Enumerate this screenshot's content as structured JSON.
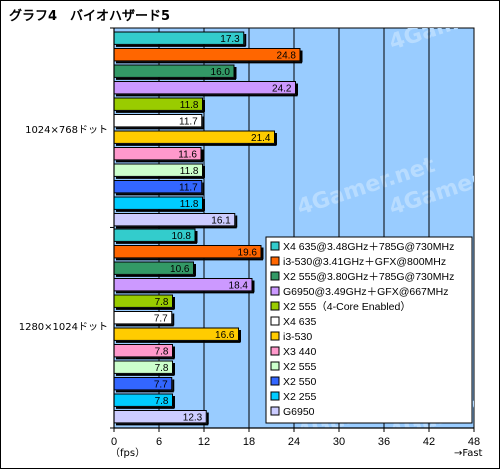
{
  "chart_data": {
    "type": "bar",
    "orientation": "horizontal",
    "title": "グラフ4　バイオハザード5",
    "xlabel_left": "（fps）",
    "xlabel_right": "→Fast",
    "xlim": [
      0,
      48
    ],
    "xticks": [
      0,
      6,
      12,
      18,
      24,
      30,
      36,
      42,
      48
    ],
    "grid": true,
    "legend_position": "right",
    "categories": [
      "1024×768ドット",
      "1280×1024ドット"
    ],
    "series": [
      {
        "name": "X4 635@3.48GHz＋785G@730MHz",
        "color": "#33CCCC",
        "values": [
          17.3,
          10.8
        ]
      },
      {
        "name": "i3-530@3.41GHz＋GFX@800MHz",
        "color": "#FF6600",
        "values": [
          24.8,
          19.6
        ]
      },
      {
        "name": "X2 555@3.80GHz＋785G@730MHz",
        "color": "#339966",
        "values": [
          16.0,
          10.6
        ]
      },
      {
        "name": "G6950@3.49GHz＋GFX@667MHz",
        "color": "#CC99FF",
        "values": [
          24.2,
          18.4
        ]
      },
      {
        "name": "X2 555（4-Core Enabled）",
        "color": "#99CC00",
        "values": [
          11.8,
          7.8
        ]
      },
      {
        "name": "X4 635",
        "color": "#FFFFFF",
        "values": [
          11.7,
          7.7
        ]
      },
      {
        "name": "i3-530",
        "color": "#FFCC00",
        "values": [
          21.4,
          16.6
        ]
      },
      {
        "name": "X3 440",
        "color": "#FF99CC",
        "values": [
          11.6,
          7.8
        ]
      },
      {
        "name": "X2 555",
        "color": "#CCFFCC",
        "values": [
          11.8,
          7.8
        ]
      },
      {
        "name": "X2 550",
        "color": "#3366FF",
        "values": [
          11.7,
          7.7
        ]
      },
      {
        "name": "X2 255",
        "color": "#00CCFF",
        "values": [
          11.8,
          7.8
        ]
      },
      {
        "name": "G6950",
        "color": "#CCCCFF",
        "values": [
          16.1,
          12.3
        ]
      }
    ],
    "value_labels": [
      [
        "17.3",
        "24.8",
        "16.0",
        "24.2",
        "11.8",
        "11.7",
        "21.4",
        "11.6",
        "11.8",
        "11.7",
        "11.8",
        "16.1"
      ],
      [
        "10.8",
        "19.6",
        "10.6",
        "18.4",
        "7.8",
        "7.7",
        "16.6",
        "7.8",
        "7.8",
        "7.7",
        "7.8",
        "12.3"
      ]
    ],
    "plot_background": "#99CCFF",
    "watermark": "4Gamer.net"
  }
}
